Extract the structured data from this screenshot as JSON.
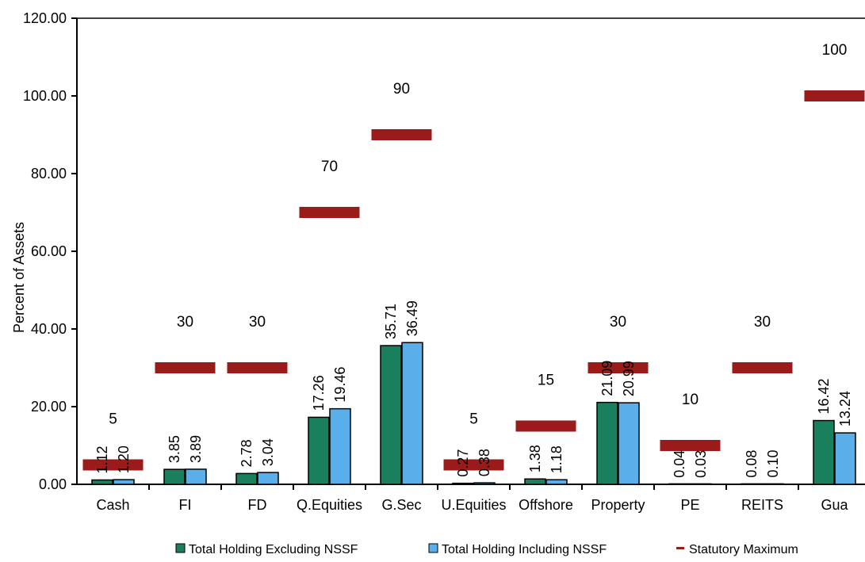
{
  "chart_data": {
    "type": "bar",
    "ylabel": "Percent of Assets",
    "xlabel": "",
    "title": "",
    "ylim": [
      0,
      120
    ],
    "y_ticks": [
      "0.00",
      "20.00",
      "40.00",
      "60.00",
      "80.00",
      "100.00",
      "120.00"
    ],
    "grid": false,
    "legend_position": "bottom",
    "categories": [
      "Cash",
      "FI",
      "FD",
      "Q.Equities",
      "G.Sec",
      "U.Equities",
      "Offshore",
      "Property",
      "PE",
      "REITS",
      "Gua"
    ],
    "series": [
      {
        "name": "Total Holding Excluding NSSF",
        "color": "#1a7f5c",
        "values": [
          1.12,
          3.85,
          2.78,
          17.26,
          35.71,
          0.27,
          1.38,
          21.09,
          0.04,
          0.08,
          16.42
        ],
        "labels": [
          "1.12",
          "3.85",
          "2.78",
          "17.26",
          "35.71",
          "0.27",
          "1.38",
          "21.09",
          "0.04",
          "0.08",
          "16.42"
        ]
      },
      {
        "name": "Total Holding Including NSSF",
        "color": "#5aaeea",
        "values": [
          1.2,
          3.89,
          3.04,
          19.46,
          36.49,
          0.38,
          1.18,
          20.99,
          0.03,
          0.1,
          13.24
        ],
        "labels": [
          "1.20",
          "3.89",
          "3.04",
          "19.46",
          "36.49",
          "0.38",
          "1.18",
          "20.99",
          "0.03",
          "0.10",
          "13.24"
        ]
      }
    ],
    "statutory_maximum": {
      "name": "Statutory Maximum",
      "color": "#9b1b1b",
      "values": [
        5,
        30,
        30,
        70,
        90,
        5,
        15,
        30,
        10,
        30,
        100
      ],
      "labels": [
        "5",
        "30",
        "30",
        "70",
        "90",
        "5",
        "15",
        "30",
        "10",
        "30",
        "100"
      ]
    }
  }
}
